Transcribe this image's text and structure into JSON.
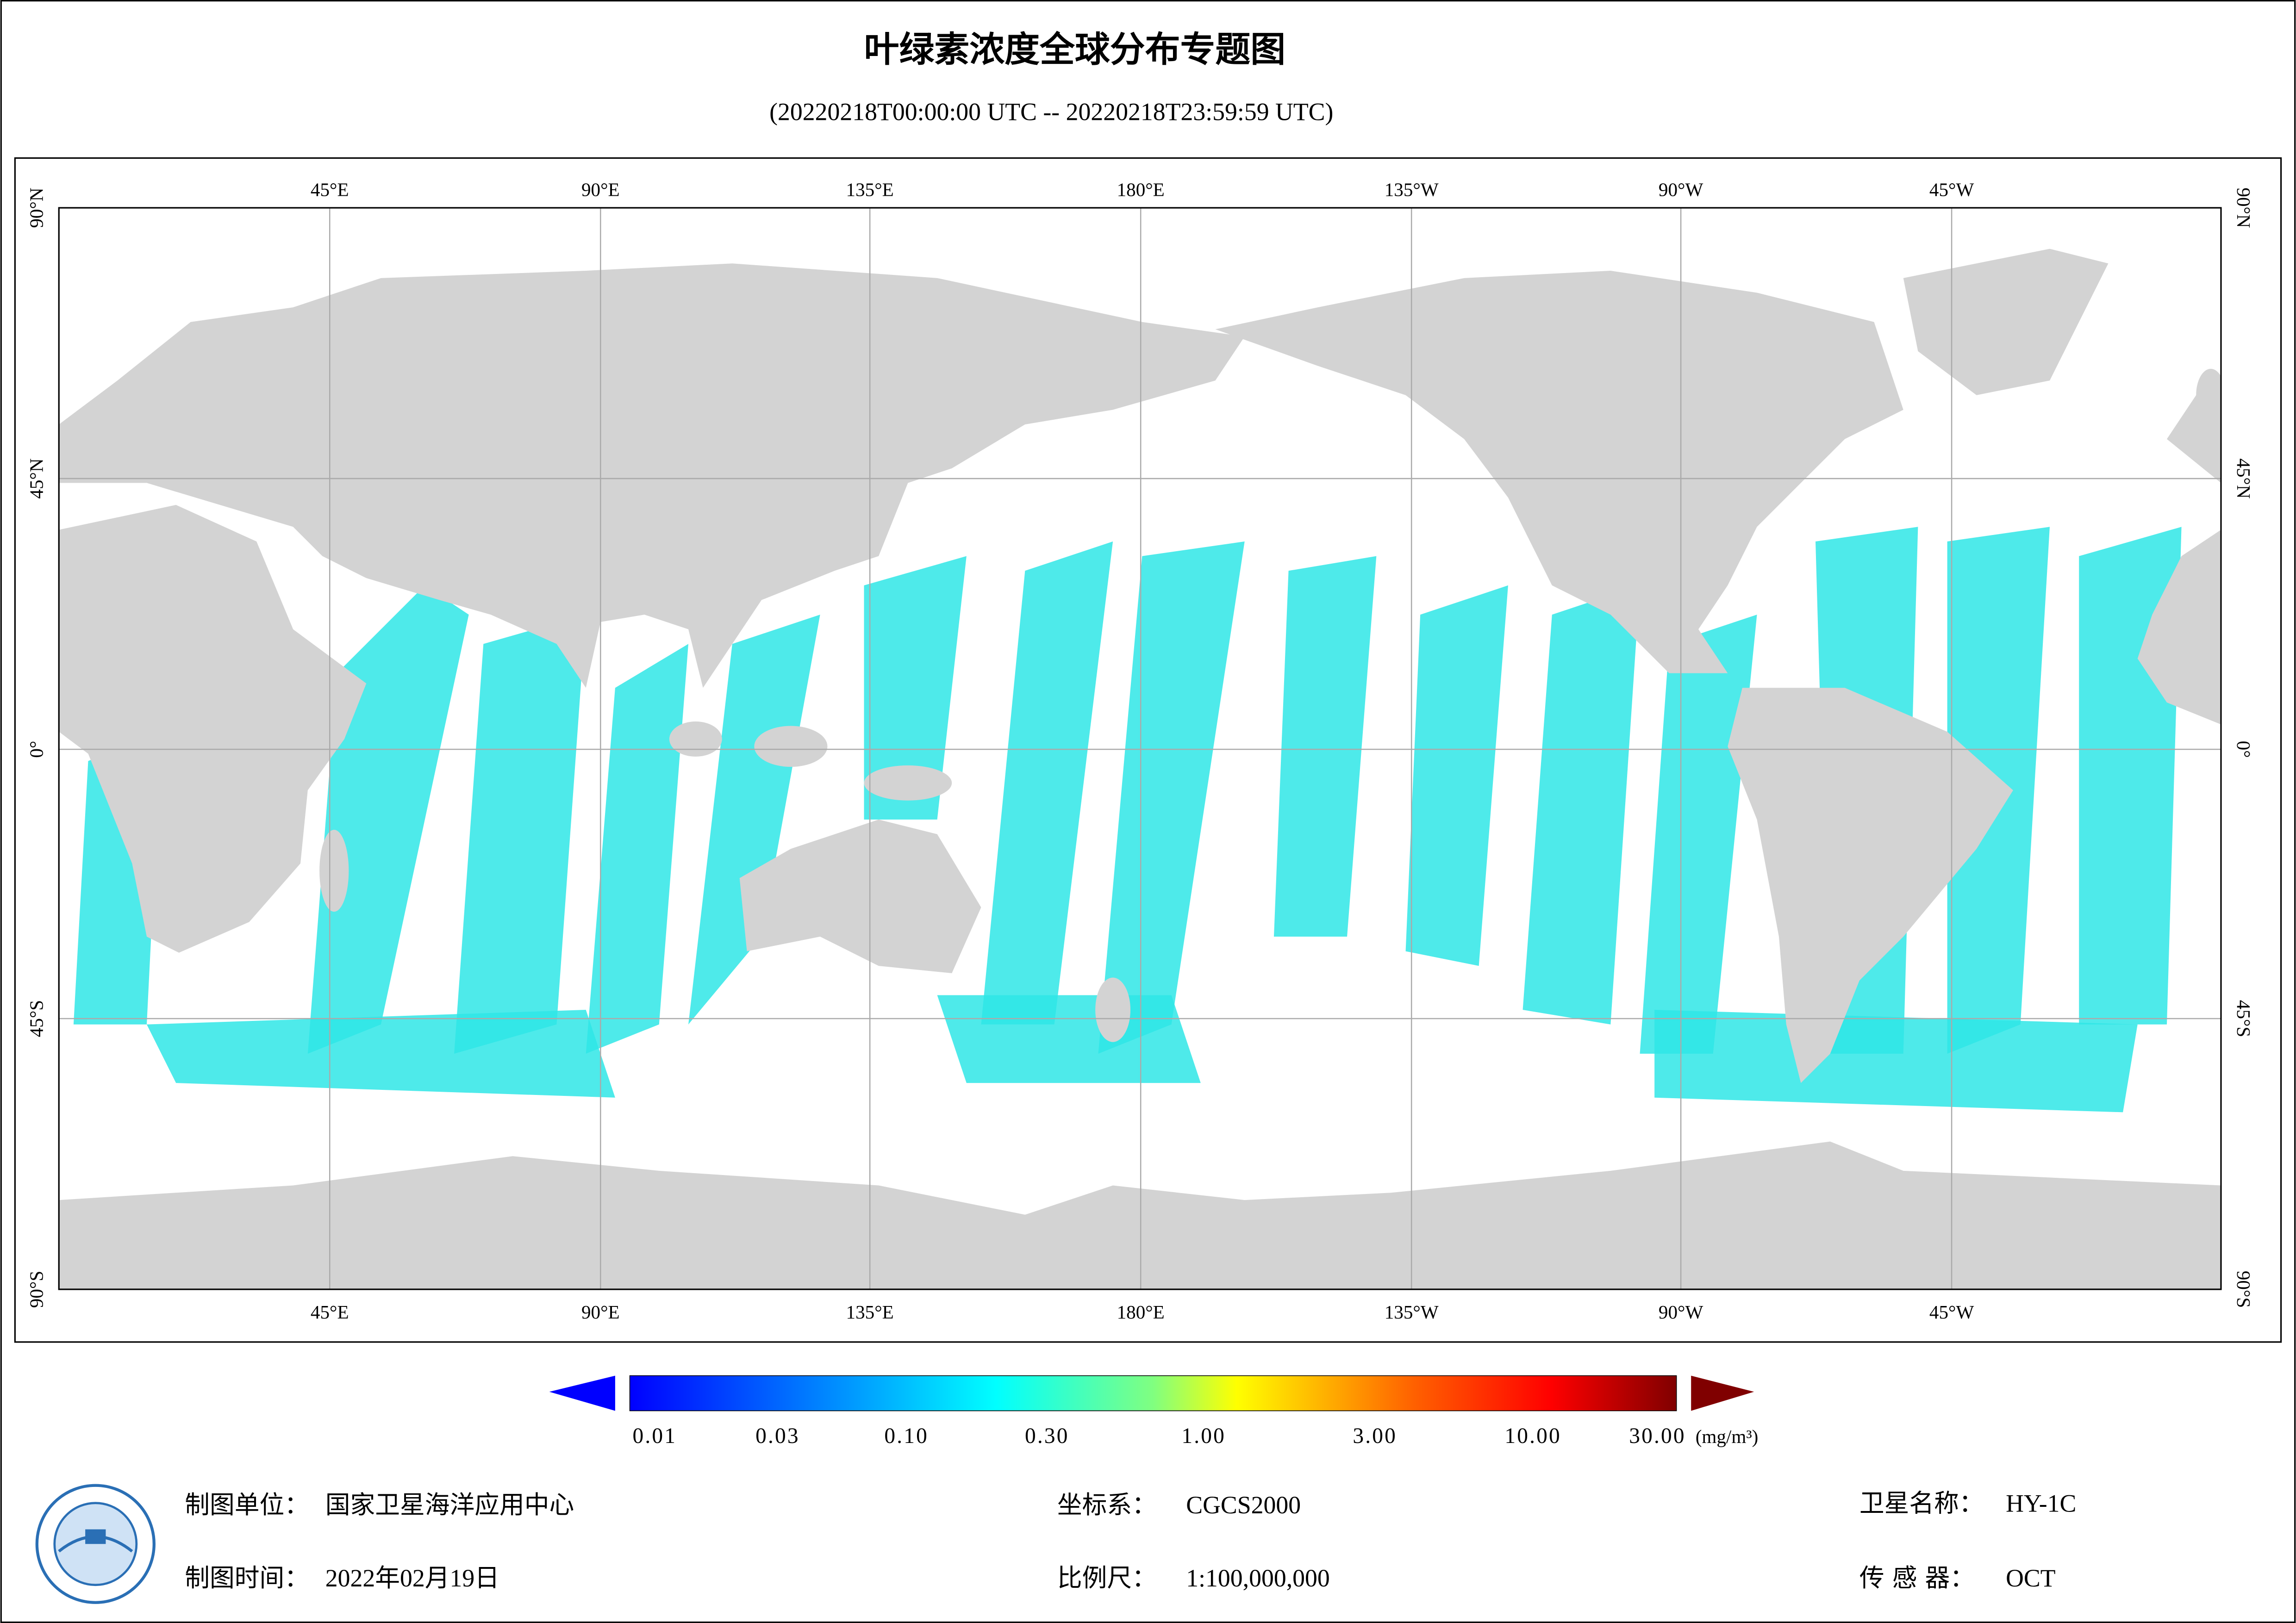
{
  "header": {
    "title": "叶绿素浓度全球分布专题图",
    "subtitle": "(20220218T00:00:00 UTC -- 20220218T23:59:59 UTC)"
  },
  "map": {
    "lon_labels": [
      "45°E",
      "90°E",
      "135°E",
      "180°E",
      "135°W",
      "90°W",
      "45°W"
    ],
    "lat_labels": [
      "90°N",
      "45°N",
      "0°",
      "45°S",
      "90°S"
    ]
  },
  "colorbar": {
    "labels": [
      "0.01",
      "0.03",
      "0.10",
      "0.30",
      "1.00",
      "3.00",
      "10.00",
      "30.00"
    ],
    "unit": "(mg/m³)"
  },
  "footer": {
    "fields": [
      {
        "label": "制图单位：",
        "value": "国家卫星海洋应用中心"
      },
      {
        "label": "制图时间：",
        "value": "2022年02月19日"
      },
      {
        "label": "坐标系：",
        "value": "CGCS2000"
      },
      {
        "label": "比例尺：",
        "value": "1:100,000,000"
      },
      {
        "label": "卫星名称：",
        "value": "HY-1C"
      },
      {
        "label": "传 感 器：",
        "value": "OCT"
      }
    ]
  }
}
